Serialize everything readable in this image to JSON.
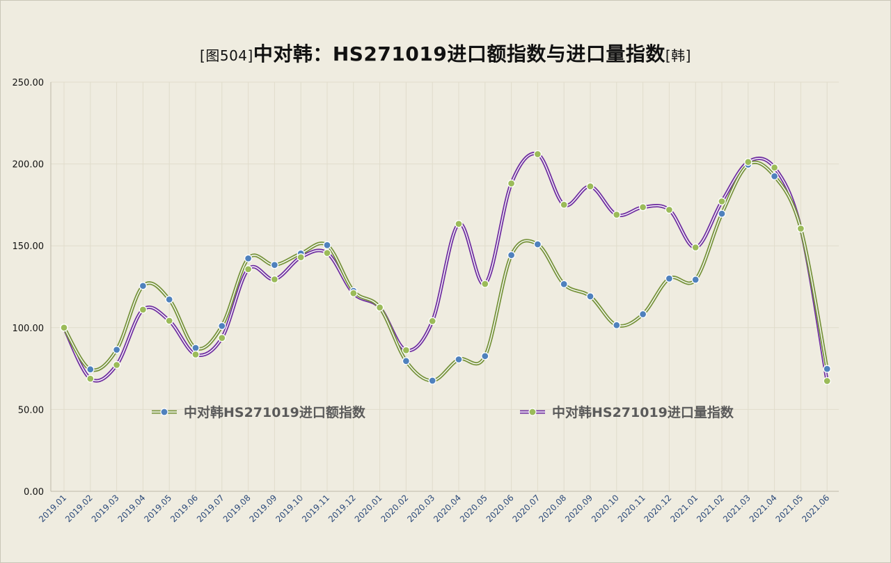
{
  "title": {
    "prefix": "[图504]",
    "main": "中对韩：HS271019进口额指数与进口量指数",
    "suffix": "[韩]"
  },
  "colors": {
    "background": "#efece0",
    "grid": "#e0dccb",
    "series1_dot": "#4f81bd",
    "series1_line_outer": "#77933c",
    "series2_dot": "#9bbb59",
    "series2_line_outer": "#7030a0",
    "line_inner": "#ffffff"
  },
  "chart_data": {
    "type": "line",
    "smooth": true,
    "grid": true,
    "legend_position": "inside-bottom",
    "ylim": [
      0,
      250
    ],
    "yticks": [
      "0.00",
      "50.00",
      "100.00",
      "150.00",
      "200.00",
      "250.00"
    ],
    "ytick_values": [
      0,
      50,
      100,
      150,
      200,
      250
    ],
    "categories": [
      "2019.01",
      "2019.02",
      "2019.03",
      "2019.04",
      "2019.05",
      "2019.06",
      "2019.07",
      "2019.08",
      "2019.09",
      "2019.10",
      "2019.11",
      "2019.12",
      "2020.01",
      "2020.02",
      "2020.03",
      "2020.04",
      "2020.05",
      "2020.06",
      "2020.07",
      "2020.08",
      "2020.09",
      "2020.10",
      "2020.11",
      "2020.12",
      "2021.01",
      "2021.02",
      "2021.03",
      "2021.04",
      "2021.05",
      "2021.06"
    ],
    "series": [
      {
        "name": "中对韩HS271019进口额指数",
        "values": [
          100.0,
          74.5,
          86.5,
          125.5,
          117.2,
          87.6,
          101.0,
          142.3,
          138.3,
          145.3,
          150.4,
          122.4,
          112.3,
          79.6,
          67.6,
          80.6,
          82.6,
          144.3,
          150.9,
          126.6,
          119.1,
          101.5,
          108.2,
          130.0,
          129.3,
          169.6,
          199.6,
          192.5,
          160.5,
          74.8
        ]
      },
      {
        "name": "中对韩HS271019进口量指数",
        "values": [
          100.0,
          68.8,
          77.2,
          111.0,
          104.2,
          83.6,
          93.7,
          135.7,
          129.5,
          143.0,
          145.6,
          121.0,
          112.3,
          86.2,
          104.0,
          163.4,
          126.7,
          188.1,
          206.0,
          175.1,
          186.3,
          169.0,
          173.6,
          172.0,
          149.0,
          177.1,
          201.2,
          197.8,
          160.5,
          67.4
        ]
      }
    ]
  }
}
